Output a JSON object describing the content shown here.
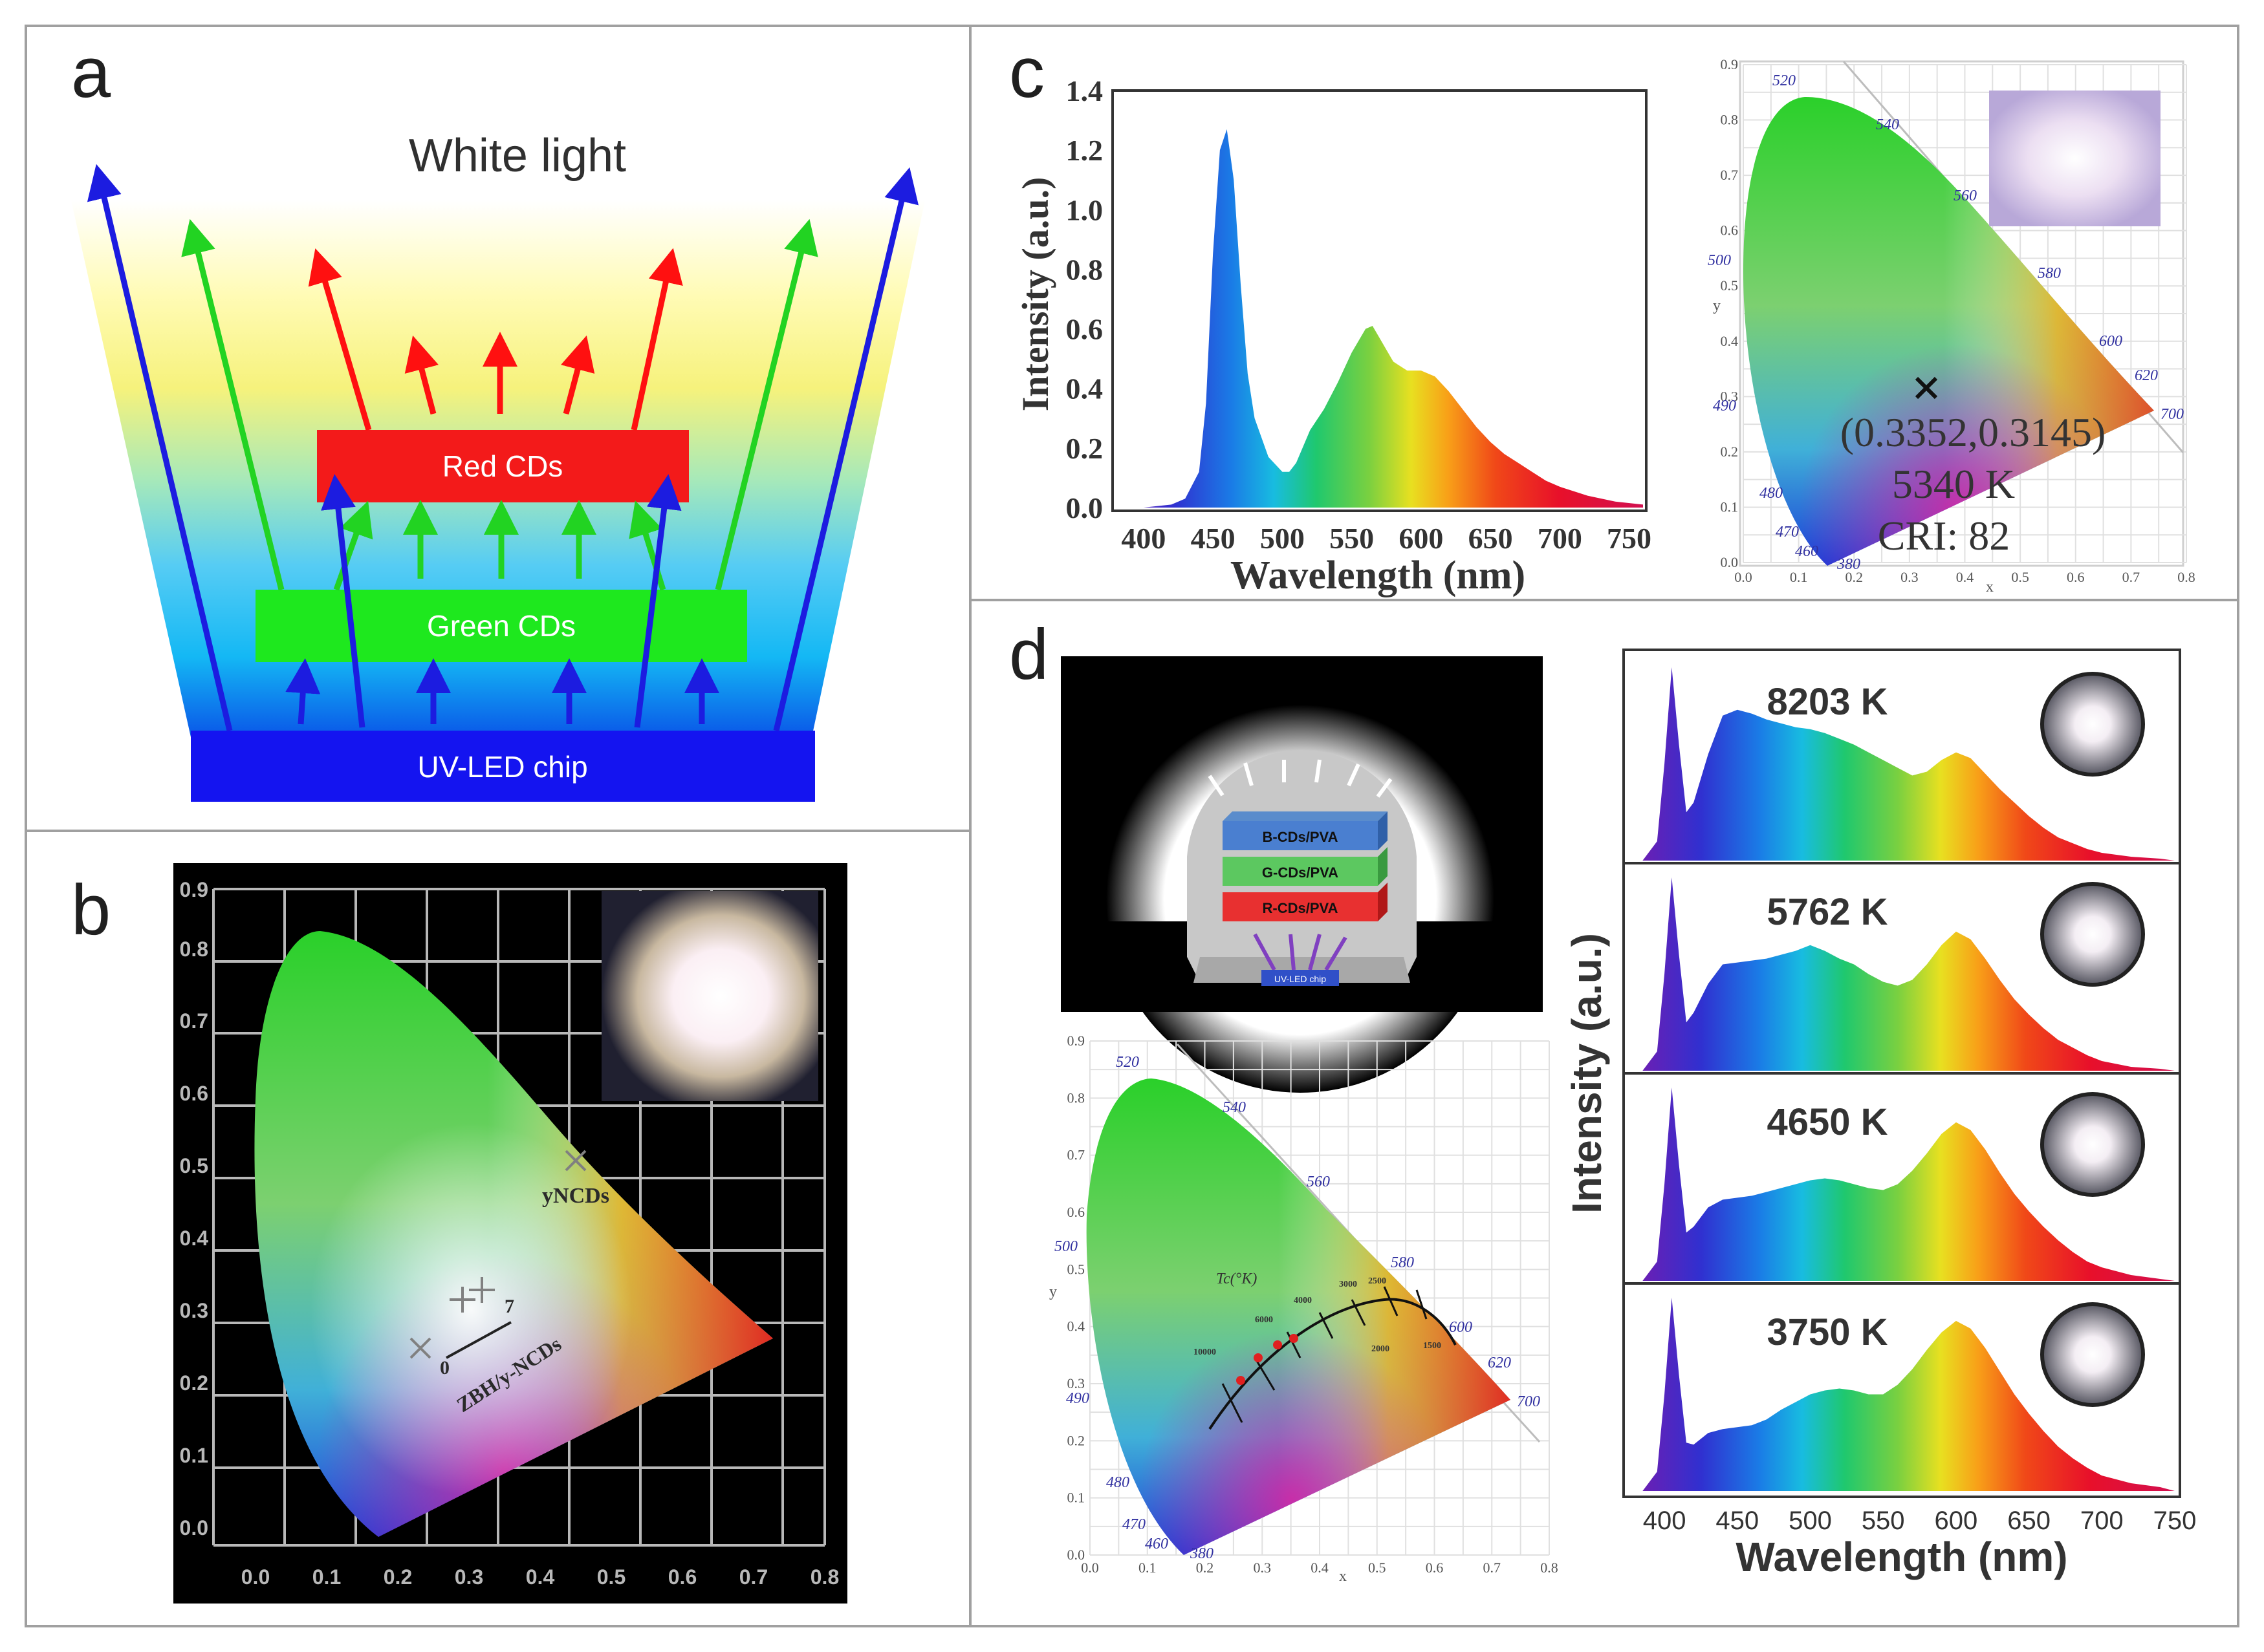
{
  "panels": {
    "a": {
      "letter": "a",
      "title": "White light",
      "layers": [
        "Red CDs",
        "Green CDs",
        "UV-LED chip"
      ]
    },
    "b": {
      "letter": "b",
      "y_ticks": [
        "0.0",
        "0.1",
        "0.2",
        "0.3",
        "0.4",
        "0.5",
        "0.6",
        "0.7",
        "0.8",
        "0.9"
      ],
      "x_ticks": [
        "0.0",
        "0.1",
        "0.2",
        "0.3",
        "0.4",
        "0.5",
        "0.6",
        "0.7",
        "0.8"
      ],
      "label_ynds": "yNCDs",
      "label_zbh": "ZBH/y-NCDs",
      "label_zero": "0",
      "label_seven": "7"
    },
    "c": {
      "letter": "c",
      "annotation_coords": "(0.3352,0.3145)",
      "annotation_cct": "5340 K",
      "annotation_cri": "CRI: 82"
    },
    "d": {
      "letter": "d",
      "device_layers": [
        "B-CDs/PVA",
        "G-CDs/PVA",
        "R-CDs/PVA"
      ],
      "chip_label": "UV-LED chip",
      "tc_label": "Tc(°K)",
      "cct_labels": [
        "8203 K",
        "5762 K",
        "4650 K",
        "3750 K"
      ]
    }
  },
  "cie_labels": {
    "x_axis": "x",
    "y_axis": "y",
    "x_ticks": [
      "0.0",
      "0.1",
      "0.2",
      "0.3",
      "0.4",
      "0.5",
      "0.6",
      "0.7",
      "0.8"
    ],
    "y_ticks": [
      "0.0",
      "0.1",
      "0.2",
      "0.3",
      "0.4",
      "0.5",
      "0.6",
      "0.7",
      "0.8",
      "0.9"
    ],
    "wavelengths": [
      "520",
      "540",
      "560",
      "580",
      "600",
      "620",
      "700",
      "500",
      "490",
      "480",
      "470",
      "460",
      "380"
    ],
    "blackbody_temps": [
      "10000",
      "6000",
      "4000",
      "3000",
      "2500",
      "2000",
      "1500"
    ]
  },
  "chart_data": [
    {
      "type": "area",
      "panel": "c",
      "title": "",
      "xlabel": "Wavelength (nm)",
      "ylabel": "Intensity (a.u.)",
      "xlim": [
        380,
        760
      ],
      "ylim": [
        0,
        1.4
      ],
      "x_ticks": [
        "400",
        "450",
        "500",
        "550",
        "600",
        "650",
        "700",
        "750"
      ],
      "y_ticks": [
        "0.0",
        "0.2",
        "0.4",
        "0.6",
        "0.8",
        "1.0",
        "1.2",
        "1.4"
      ],
      "x": [
        380,
        400,
        420,
        430,
        440,
        445,
        450,
        455,
        460,
        465,
        470,
        475,
        480,
        490,
        500,
        505,
        510,
        520,
        530,
        540,
        550,
        560,
        565,
        570,
        580,
        590,
        600,
        610,
        620,
        630,
        640,
        650,
        660,
        670,
        680,
        690,
        700,
        720,
        740,
        760
      ],
      "values": [
        0,
        0,
        0.01,
        0.03,
        0.12,
        0.35,
        0.85,
        1.2,
        1.27,
        1.1,
        0.75,
        0.45,
        0.3,
        0.17,
        0.12,
        0.12,
        0.15,
        0.26,
        0.33,
        0.42,
        0.52,
        0.6,
        0.61,
        0.57,
        0.49,
        0.46,
        0.46,
        0.44,
        0.39,
        0.33,
        0.27,
        0.22,
        0.18,
        0.15,
        0.12,
        0.09,
        0.07,
        0.04,
        0.02,
        0.01
      ]
    },
    {
      "type": "area",
      "panel": "d",
      "xlabel": "Wavelength (nm)",
      "ylabel": "Intensity (a.u.)",
      "xlim": [
        380,
        750
      ],
      "x_ticks": [
        "400",
        "450",
        "500",
        "550",
        "600",
        "650",
        "700",
        "750"
      ],
      "x": [
        385,
        395,
        400,
        405,
        410,
        415,
        420,
        430,
        440,
        450,
        460,
        470,
        480,
        490,
        500,
        510,
        520,
        530,
        540,
        550,
        560,
        570,
        580,
        590,
        600,
        610,
        620,
        630,
        640,
        650,
        660,
        670,
        680,
        690,
        700,
        720,
        740,
        750
      ],
      "series": [
        {
          "name": "8203 K",
          "values": [
            0,
            0.1,
            0.5,
            1.0,
            0.6,
            0.25,
            0.3,
            0.55,
            0.75,
            0.78,
            0.76,
            0.73,
            0.71,
            0.69,
            0.68,
            0.66,
            0.63,
            0.6,
            0.56,
            0.52,
            0.48,
            0.44,
            0.46,
            0.52,
            0.56,
            0.53,
            0.45,
            0.37,
            0.3,
            0.23,
            0.17,
            0.12,
            0.09,
            0.06,
            0.04,
            0.02,
            0.01,
            0
          ]
        },
        {
          "name": "5762 K",
          "values": [
            0,
            0.1,
            0.5,
            1.0,
            0.6,
            0.25,
            0.3,
            0.45,
            0.55,
            0.56,
            0.57,
            0.58,
            0.6,
            0.62,
            0.65,
            0.62,
            0.58,
            0.55,
            0.5,
            0.46,
            0.44,
            0.47,
            0.55,
            0.65,
            0.72,
            0.68,
            0.58,
            0.47,
            0.37,
            0.29,
            0.22,
            0.16,
            0.12,
            0.08,
            0.05,
            0.02,
            0.01,
            0
          ]
        },
        {
          "name": "4650 K",
          "values": [
            0,
            0.1,
            0.5,
            1.0,
            0.6,
            0.25,
            0.28,
            0.38,
            0.42,
            0.43,
            0.44,
            0.46,
            0.48,
            0.5,
            0.52,
            0.53,
            0.52,
            0.5,
            0.48,
            0.47,
            0.5,
            0.57,
            0.66,
            0.76,
            0.82,
            0.78,
            0.68,
            0.56,
            0.45,
            0.36,
            0.28,
            0.21,
            0.15,
            0.1,
            0.07,
            0.03,
            0.01,
            0
          ]
        },
        {
          "name": "3750 K",
          "values": [
            0,
            0.1,
            0.5,
            1.0,
            0.6,
            0.25,
            0.24,
            0.3,
            0.32,
            0.33,
            0.34,
            0.37,
            0.42,
            0.46,
            0.5,
            0.52,
            0.53,
            0.52,
            0.5,
            0.5,
            0.55,
            0.63,
            0.73,
            0.82,
            0.88,
            0.84,
            0.74,
            0.62,
            0.5,
            0.4,
            0.31,
            0.23,
            0.17,
            0.12,
            0.08,
            0.04,
            0.02,
            0
          ]
        }
      ]
    },
    {
      "type": "scatter",
      "panel": "c",
      "xlabel": "x",
      "ylabel": "y",
      "xlim": [
        0,
        0.8
      ],
      "ylim": [
        0,
        0.9
      ],
      "points": [
        {
          "x": 0.3352,
          "y": 0.3145,
          "label": "(0.3352,0.3145)"
        }
      ]
    }
  ]
}
